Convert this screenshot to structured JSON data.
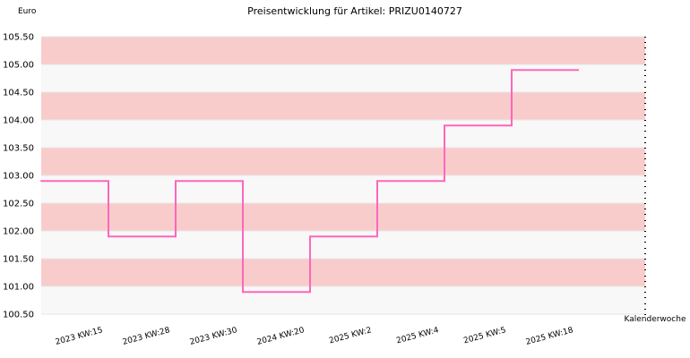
{
  "chart_data": {
    "type": "line",
    "step": true,
    "title": "Preisentwicklung für Artikel: PRIZU0140727",
    "ylabel": "Euro",
    "xlabel": "Kalenderwoche",
    "categories": [
      "2023 KW:15",
      "2023 KW:28",
      "2023 KW:30",
      "2024 KW:20",
      "2025 KW:2",
      "2025 KW:4",
      "2025 KW:5",
      "2025 KW:18"
    ],
    "values": [
      102.9,
      101.9,
      102.9,
      100.9,
      101.9,
      102.9,
      103.9,
      104.9
    ],
    "ylim": [
      100.5,
      105.5
    ],
    "yticks": [
      "100.50",
      "101.00",
      "101.50",
      "102.00",
      "102.50",
      "103.00",
      "103.50",
      "104.00",
      "104.50",
      "105.00",
      "105.50"
    ],
    "series_color": "#ff66bb",
    "band_colors": [
      "#f8f8f8",
      "#f9cccc"
    ],
    "grid": true,
    "legend": "none"
  }
}
